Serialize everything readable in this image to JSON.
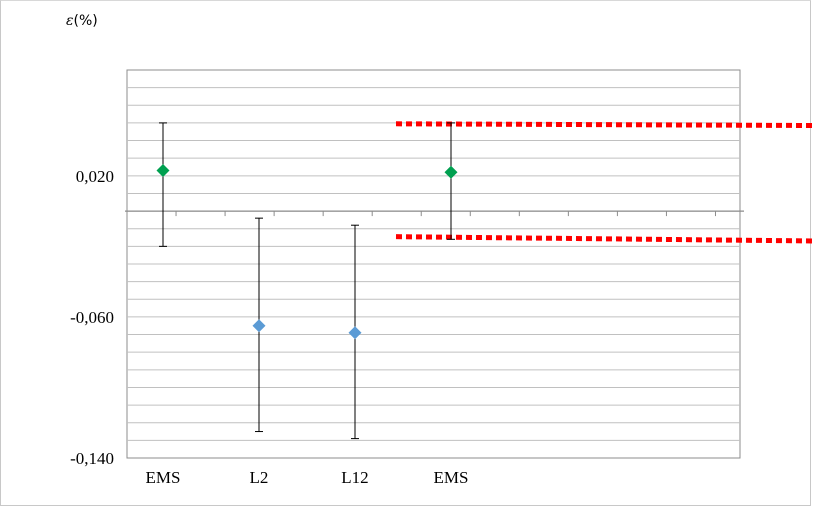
{
  "chart_data": {
    "type": "scatter",
    "ylabel_symbol": "ε",
    "ylabel_unit": "(%)",
    "categories": [
      "EMS",
      "L2",
      "L12",
      "EMS"
    ],
    "ylim": [
      -0.14,
      0.08
    ],
    "x_axis_at": 0.0,
    "y_ticks": [
      {
        "value": 0.02,
        "label": "0,020"
      },
      {
        "value": -0.06,
        "label": "-0,060"
      },
      {
        "value": -0.14,
        "label": "-0,140"
      }
    ],
    "gridline_step": 0.01,
    "grid": true,
    "points": [
      {
        "category_index": 0,
        "value": 0.023,
        "low": -0.02,
        "high": 0.05,
        "color": "#00a050"
      },
      {
        "category_index": 1,
        "value": -0.065,
        "low": -0.125,
        "high": -0.004,
        "color": "#5b9bd5"
      },
      {
        "category_index": 2,
        "value": -0.069,
        "low": -0.129,
        "high": -0.008,
        "color": "#5b9bd5"
      },
      {
        "category_index": 3,
        "value": 0.022,
        "low": -0.016,
        "high": 0.05,
        "color": "#00a050"
      }
    ],
    "reference_lines": [
      {
        "x_start": 2.0,
        "x_end": 5.0,
        "y_start": 0.0495,
        "y_end": 0.0485,
        "color": "#ff0000",
        "style": "dotted"
      },
      {
        "x_start": 2.0,
        "x_end": 5.0,
        "y_start": -0.0145,
        "y_end": -0.017,
        "color": "#ff0000",
        "style": "dotted"
      }
    ]
  }
}
